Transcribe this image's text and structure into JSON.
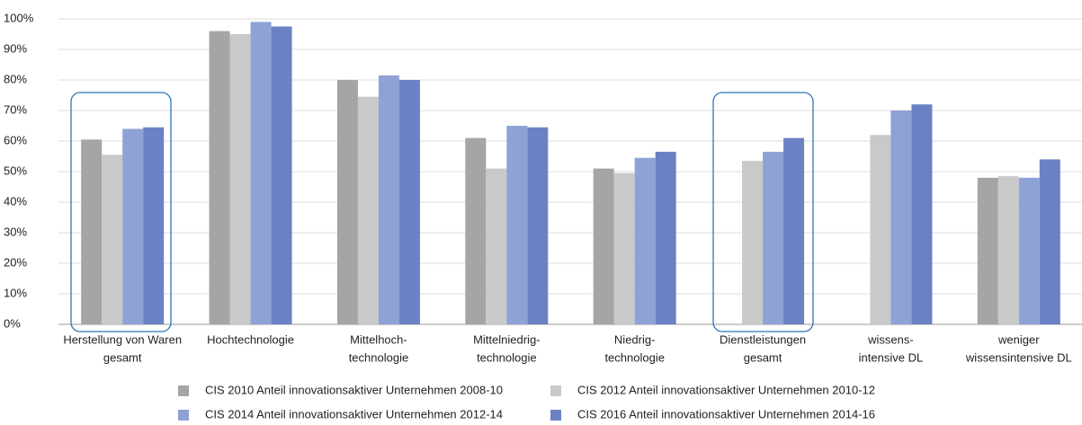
{
  "chart_data": {
    "type": "bar",
    "categories": [
      [
        "Herstellung von Waren",
        "gesamt"
      ],
      [
        "Hochtechnologie"
      ],
      [
        "Mittelhoch-",
        "technologie"
      ],
      [
        "Mittelniedrig-",
        "technologie"
      ],
      [
        "Niedrig-",
        "technologie"
      ],
      [
        "Dienstleistungen",
        "gesamt"
      ],
      [
        "wissens-",
        "intensive DL"
      ],
      [
        "weniger",
        "wissensintensive DL"
      ]
    ],
    "series": [
      {
        "name": "CIS 2010 Anteil innovationsaktiver Unternehmen 2008-10",
        "color": "#a5a5a5",
        "values": [
          60.5,
          96,
          80,
          61,
          51,
          null,
          null,
          48
        ]
      },
      {
        "name": "CIS 2012 Anteil innovationsaktiver Unternehmen 2010-12",
        "color": "#c9c9c9",
        "values": [
          55.5,
          95,
          74.5,
          51,
          49.5,
          53.5,
          62,
          48.5
        ]
      },
      {
        "name": "CIS 2014 Anteil innovationsaktiver Unternehmen 2012-14",
        "color": "#8fa2d6",
        "values": [
          64,
          99,
          81.5,
          65,
          54.5,
          56.5,
          70,
          48
        ]
      },
      {
        "name": "CIS 2016 Anteil innovationsaktiver Unternehmen 2014-16",
        "color": "#6a82c4",
        "values": [
          64.5,
          97.5,
          80,
          64.5,
          56.5,
          61,
          72,
          54
        ]
      }
    ],
    "ylim": [
      0,
      100
    ],
    "yticks": [
      {
        "value": 0,
        "label": "0%"
      },
      {
        "value": 10,
        "label": "10%"
      },
      {
        "value": 20,
        "label": "20%"
      },
      {
        "value": 30,
        "label": "30%"
      },
      {
        "value": 40,
        "label": "40%"
      },
      {
        "value": 50,
        "label": "50%"
      },
      {
        "value": 60,
        "label": "60%"
      },
      {
        "value": 70,
        "label": "70%"
      },
      {
        "value": 80,
        "label": "80%"
      },
      {
        "value": 90,
        "label": "90%"
      },
      {
        "value": 100,
        "label": "100%"
      }
    ],
    "grid": true,
    "legend": "bottom"
  }
}
